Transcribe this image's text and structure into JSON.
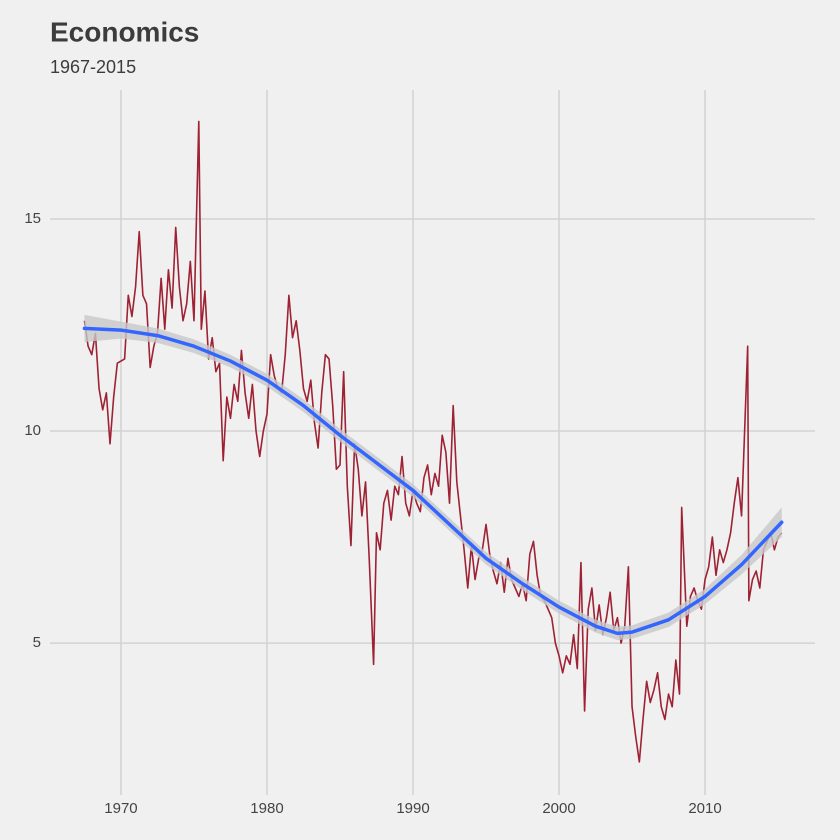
{
  "chart_data": {
    "type": "line",
    "title": "Economics",
    "subtitle": "1967-2015",
    "x": [
      1967.5,
      1967.75,
      1968.0,
      1968.25,
      1968.5,
      1968.75,
      1969.0,
      1969.25,
      1969.5,
      1969.75,
      1970.25,
      1970.5,
      1970.75,
      1971.0,
      1971.25,
      1971.5,
      1971.75,
      1972.0,
      1972.25,
      1972.5,
      1972.75,
      1973.0,
      1973.25,
      1973.5,
      1973.75,
      1974.0,
      1974.25,
      1974.5,
      1974.75,
      1975.0,
      1975.33,
      1975.5,
      1975.75,
      1976.0,
      1976.25,
      1976.5,
      1976.75,
      1977.0,
      1977.25,
      1977.5,
      1977.75,
      1978.0,
      1978.25,
      1978.5,
      1978.75,
      1979.0,
      1979.25,
      1979.5,
      1979.75,
      1980.0,
      1980.25,
      1980.5,
      1980.75,
      1981.0,
      1981.25,
      1981.5,
      1981.75,
      1982.0,
      1982.25,
      1982.5,
      1982.75,
      1983.0,
      1983.25,
      1983.5,
      1983.75,
      1984.0,
      1984.25,
      1984.5,
      1984.75,
      1985.0,
      1985.25,
      1985.5,
      1985.75,
      1986.0,
      1986.25,
      1986.5,
      1986.75,
      1987.0,
      1987.3,
      1987.5,
      1987.75,
      1988.0,
      1988.25,
      1988.5,
      1988.75,
      1989.0,
      1989.25,
      1989.5,
      1989.75,
      1990.0,
      1990.25,
      1990.5,
      1990.75,
      1991.0,
      1991.25,
      1991.5,
      1991.75,
      1992.0,
      1992.25,
      1992.5,
      1992.75,
      1993.0,
      1993.25,
      1993.5,
      1993.75,
      1994.0,
      1994.25,
      1994.5,
      1994.75,
      1995.0,
      1995.25,
      1995.5,
      1995.75,
      1996.0,
      1996.25,
      1996.5,
      1996.75,
      1997.0,
      1997.25,
      1997.5,
      1997.75,
      1998.0,
      1998.25,
      1998.5,
      1998.75,
      1999.0,
      1999.25,
      1999.5,
      1999.75,
      2000.0,
      2000.25,
      2000.5,
      2000.75,
      2001.0,
      2001.25,
      2001.5,
      2001.75,
      2002.0,
      2002.25,
      2002.5,
      2002.75,
      2003.0,
      2003.25,
      2003.5,
      2003.75,
      2004.0,
      2004.25,
      2004.5,
      2004.75,
      2005.0,
      2005.25,
      2005.5,
      2005.75,
      2006.0,
      2006.25,
      2006.5,
      2006.75,
      2007.0,
      2007.25,
      2007.5,
      2007.75,
      2008.0,
      2008.25,
      2008.4,
      2008.75,
      2009.0,
      2009.25,
      2009.5,
      2009.75,
      2010.0,
      2010.25,
      2010.5,
      2010.75,
      2011.0,
      2011.25,
      2011.5,
      2011.75,
      2012.0,
      2012.25,
      2012.5,
      2012.92,
      2013.0,
      2013.25,
      2013.5,
      2013.75,
      2014.0,
      2014.25,
      2014.5,
      2014.75,
      2015.0,
      2015.25
    ],
    "series": [
      {
        "color": "#9e2234",
        "values": [
          12.6,
          12.0,
          11.8,
          12.3,
          11.0,
          10.5,
          10.9,
          9.7,
          10.8,
          11.6,
          11.7,
          13.2,
          12.7,
          13.4,
          14.7,
          13.2,
          13.0,
          11.5,
          12.0,
          12.3,
          13.6,
          12.4,
          13.8,
          12.9,
          14.8,
          13.4,
          12.6,
          13.0,
          14.0,
          12.6,
          17.3,
          12.4,
          13.3,
          11.7,
          12.2,
          11.4,
          11.6,
          9.3,
          10.8,
          10.3,
          11.1,
          10.7,
          11.9,
          10.9,
          10.3,
          11.1,
          10.0,
          9.4,
          10.0,
          10.4,
          11.8,
          11.3,
          11.0,
          10.9,
          11.8,
          13.2,
          12.2,
          12.6,
          11.9,
          11.0,
          10.7,
          11.2,
          10.2,
          9.6,
          10.9,
          11.8,
          11.7,
          10.6,
          9.1,
          9.2,
          11.4,
          8.7,
          7.3,
          9.7,
          9.1,
          8.0,
          8.8,
          7.0,
          4.5,
          7.6,
          7.2,
          8.3,
          8.6,
          7.9,
          8.7,
          8.5,
          9.4,
          8.3,
          8.0,
          8.6,
          8.3,
          8.1,
          8.9,
          9.2,
          8.5,
          9.0,
          8.7,
          9.9,
          9.5,
          8.3,
          10.6,
          8.8,
          8.0,
          7.2,
          6.3,
          7.3,
          6.5,
          7.0,
          7.2,
          7.8,
          7.1,
          6.7,
          6.4,
          6.9,
          6.2,
          7.0,
          6.5,
          6.3,
          6.1,
          6.4,
          6.0,
          7.1,
          7.4,
          6.6,
          6.1,
          6.0,
          5.8,
          5.6,
          5.0,
          4.7,
          4.3,
          4.7,
          4.5,
          5.2,
          4.4,
          6.9,
          3.4,
          5.8,
          6.3,
          5.3,
          5.9,
          5.2,
          5.6,
          6.2,
          5.3,
          5.6,
          5.0,
          5.4,
          6.8,
          3.5,
          2.8,
          2.2,
          3.2,
          4.1,
          3.6,
          3.9,
          4.3,
          3.5,
          3.2,
          3.8,
          3.5,
          4.6,
          3.8,
          8.2,
          5.4,
          6.1,
          6.3,
          6.0,
          5.8,
          6.5,
          6.8,
          7.5,
          6.6,
          7.2,
          6.9,
          7.2,
          7.6,
          8.3,
          8.9,
          8.0,
          12.0,
          6.0,
          6.5,
          6.7,
          6.3,
          7.2,
          7.4,
          7.6,
          7.2,
          7.5,
          7.6
        ]
      }
    ],
    "smooth": {
      "color": "#3366ff",
      "band_color": "#c8c8c8",
      "x": [
        1967.5,
        1970,
        1972.5,
        1975,
        1977.5,
        1980,
        1982.5,
        1985,
        1987.5,
        1990,
        1992.5,
        1995,
        1997.5,
        2000,
        2002.5,
        2004,
        2005,
        2007.5,
        2010,
        2012.5,
        2015.25
      ],
      "values": [
        12.42,
        12.38,
        12.25,
        12.0,
        11.65,
        11.2,
        10.6,
        9.9,
        9.25,
        8.6,
        7.8,
        7.0,
        6.4,
        5.85,
        5.4,
        5.23,
        5.26,
        5.55,
        6.1,
        6.85,
        7.85
      ],
      "lower": [
        12.1,
        12.18,
        12.08,
        11.84,
        11.5,
        11.05,
        10.45,
        9.75,
        9.1,
        8.45,
        7.65,
        6.85,
        6.25,
        5.7,
        5.25,
        5.07,
        5.1,
        5.38,
        5.92,
        6.62,
        7.5
      ],
      "upper": [
        12.74,
        12.58,
        12.42,
        12.16,
        11.8,
        11.35,
        10.75,
        10.05,
        9.4,
        8.75,
        7.95,
        7.15,
        6.55,
        6.0,
        5.55,
        5.39,
        5.42,
        5.72,
        6.28,
        7.08,
        8.2
      ]
    },
    "xlim": [
      1965.14,
      2017.53
    ],
    "ylim": [
      1.42,
      18.04
    ],
    "xticks": [
      1970,
      1980,
      1990,
      2000,
      2010
    ],
    "yticks": [
      5,
      10,
      15
    ],
    "grid": true
  }
}
